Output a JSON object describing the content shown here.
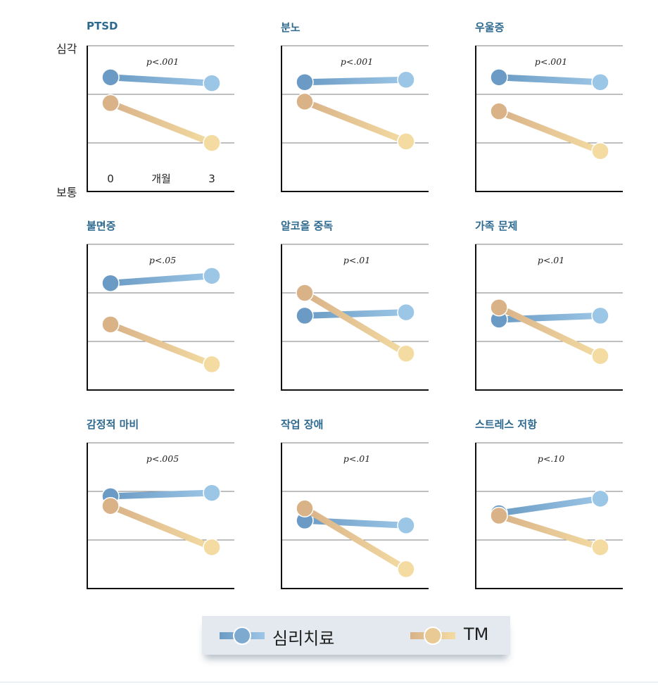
{
  "chart_data": {
    "type": "line",
    "x": [
      "0",
      "3"
    ],
    "xlabel": "개월",
    "ylabel_top": "심각",
    "ylabel_bottom": "보통",
    "ylim": [
      0,
      3
    ],
    "grid": true,
    "series_names": [
      "심리치료",
      "TM"
    ],
    "colors": {
      "psychotherapy_start": "#6b9bc4",
      "psychotherapy_end": "#9cc6e6",
      "tm_start": "#d9b288",
      "tm_end": "#f3dba2"
    },
    "panels": [
      {
        "title": "PTSD",
        "p": "p<.001",
        "series": [
          {
            "name": "심리치료",
            "values": [
              2.35,
              2.23
            ]
          },
          {
            "name": "TM",
            "values": [
              1.82,
              1.0
            ]
          }
        ]
      },
      {
        "title": "분노",
        "p": "p<.001",
        "series": [
          {
            "name": "심리치료",
            "values": [
              2.25,
              2.3
            ]
          },
          {
            "name": "TM",
            "values": [
              1.85,
              1.03
            ]
          }
        ]
      },
      {
        "title": "우울증",
        "p": "p<.001",
        "series": [
          {
            "name": "심리치료",
            "values": [
              2.35,
              2.25
            ]
          },
          {
            "name": "TM",
            "values": [
              1.65,
              0.83
            ]
          }
        ]
      },
      {
        "title": "불면증",
        "p": "p<.05",
        "series": [
          {
            "name": "심리치료",
            "values": [
              2.2,
              2.35
            ]
          },
          {
            "name": "TM",
            "values": [
              1.35,
              0.53
            ]
          }
        ]
      },
      {
        "title": "알코올 중독",
        "p": "p<.01",
        "series": [
          {
            "name": "심리치료",
            "values": [
              1.53,
              1.6
            ]
          },
          {
            "name": "TM",
            "values": [
              2.0,
              0.75
            ]
          }
        ]
      },
      {
        "title": "가족 문제",
        "p": "p<.01",
        "series": [
          {
            "name": "심리치료",
            "values": [
              1.45,
              1.53
            ]
          },
          {
            "name": "TM",
            "values": [
              1.7,
              0.7
            ]
          }
        ]
      },
      {
        "title": "감정적 마비",
        "p": "p<.005",
        "series": [
          {
            "name": "심리치료",
            "values": [
              1.9,
              1.97
            ]
          },
          {
            "name": "TM",
            "values": [
              1.7,
              0.85
            ]
          }
        ]
      },
      {
        "title": "작업 장애",
        "p": "p<.01",
        "series": [
          {
            "name": "심리치료",
            "values": [
              1.4,
              1.3
            ]
          },
          {
            "name": "TM",
            "values": [
              1.65,
              0.4
            ]
          }
        ]
      },
      {
        "title": "스트레스 저항",
        "p": "p<.10",
        "series": [
          {
            "name": "심리치료",
            "values": [
              1.55,
              1.85
            ]
          },
          {
            "name": "TM",
            "values": [
              1.5,
              0.85
            ]
          }
        ]
      }
    ]
  },
  "legend": {
    "psychotherapy_label": "심리치료",
    "tm_label": "TM"
  }
}
